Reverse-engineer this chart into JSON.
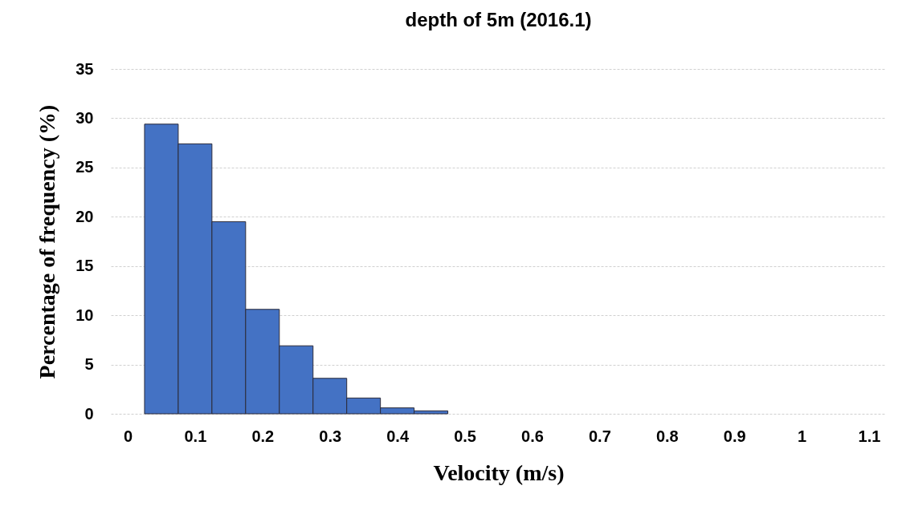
{
  "chart_data": {
    "type": "histogram",
    "title": "depth of 5m (2016.1)",
    "xlabel": "Velocity (m/s)",
    "ylabel": "Percentage of frequency (%)",
    "bins": [
      0.025,
      0.075,
      0.125,
      0.175,
      0.225,
      0.275,
      0.325,
      0.375,
      0.425,
      0.475
    ],
    "values": [
      29.4,
      27.4,
      19.5,
      10.6,
      6.9,
      3.6,
      1.6,
      0.6,
      0.3
    ],
    "color": "#4472c4",
    "xlim": [
      -0.025,
      1.125
    ],
    "xticks": [
      0,
      0.1,
      0.2,
      0.3,
      0.4,
      0.5,
      0.6,
      0.7,
      0.8,
      0.9,
      1,
      1.1
    ],
    "ylim": [
      0,
      35
    ],
    "yticks": [
      0,
      5,
      10,
      15,
      20,
      25,
      30,
      35
    ],
    "grid": "y"
  }
}
